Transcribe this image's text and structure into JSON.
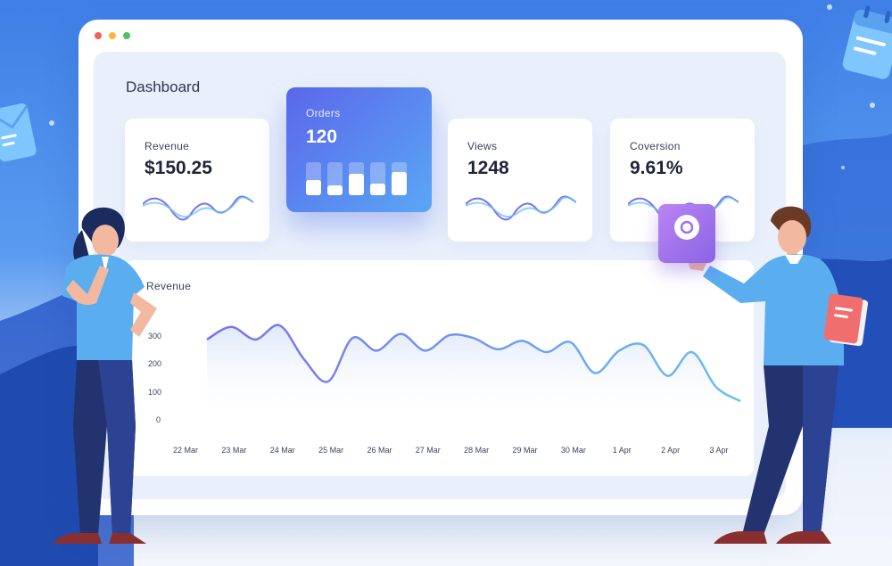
{
  "colors": {
    "accent": "#5b67ea",
    "accent_2": "#5aa7f5",
    "line_purple": "#7b6ff0",
    "traffic_red": "#f06458",
    "traffic_yellow": "#f5b942",
    "traffic_green": "#4cc366"
  },
  "dashboard": {
    "title": "Dashboard",
    "cards": [
      {
        "label": "Revenue",
        "value": "$150.25"
      },
      {
        "label": "Orders",
        "value": "120",
        "bars": [
          0.45,
          0.3,
          0.65,
          0.35,
          0.7
        ]
      },
      {
        "label": "Views",
        "value": "1248"
      },
      {
        "label": "Coversion",
        "value": "9.61%"
      }
    ]
  },
  "chart_data": {
    "type": "line",
    "title": "Revenue",
    "ylabel": "",
    "xlabel": "",
    "ylim": [
      0,
      350
    ],
    "yticks": [
      "300",
      "200",
      "100",
      "0"
    ],
    "categories": [
      "22 Mar",
      "23 Mar",
      "24 Mar",
      "25 Mar",
      "26 Mar",
      "27 Mar",
      "28 Mar",
      "29 Mar",
      "30 Mar",
      "1 Apr",
      "2 Apr",
      "3 Apr"
    ],
    "x": [
      0,
      0.5,
      1,
      1.5,
      2,
      2.5,
      3,
      3.5,
      4,
      4.5,
      5,
      5.5,
      6,
      6.5,
      7,
      7.5,
      8,
      8.5,
      9,
      9.5,
      10,
      10.5,
      11
    ],
    "values": [
      290,
      335,
      290,
      340,
      220,
      140,
      295,
      250,
      310,
      250,
      305,
      295,
      255,
      285,
      245,
      280,
      170,
      250,
      270,
      160,
      245,
      120,
      70
    ],
    "grid": false,
    "legend": "none"
  },
  "icons": {
    "gear_tile": "gear-icon",
    "document_card": "document-icon",
    "calendar": "calendar-icon",
    "envelope": "envelope-icon"
  }
}
